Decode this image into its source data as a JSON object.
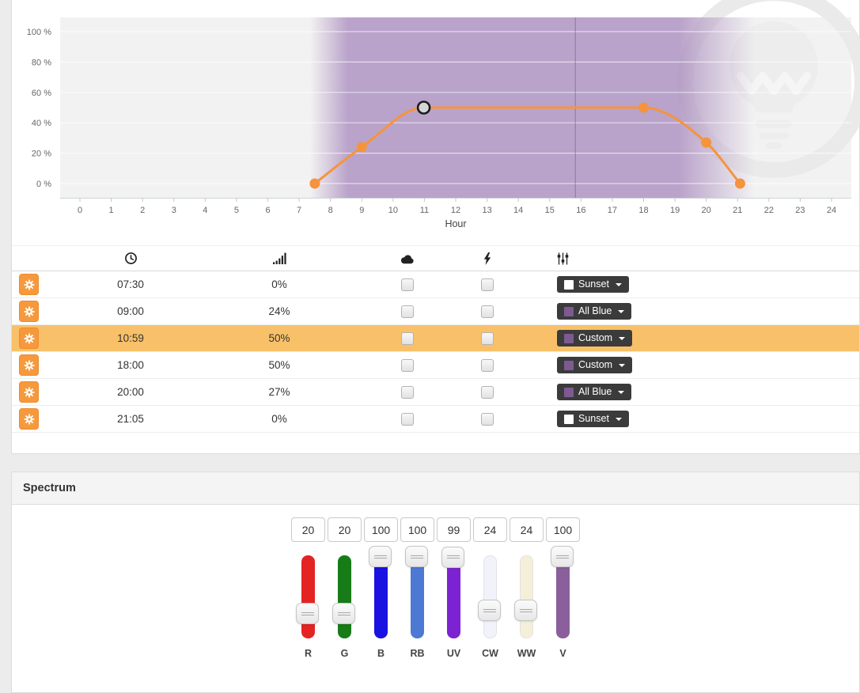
{
  "chart_data": {
    "type": "line",
    "xlabel": "Hour",
    "xlim": [
      0,
      24
    ],
    "ylim": [
      0,
      100
    ],
    "x_ticks": [
      0,
      1,
      2,
      3,
      4,
      5,
      6,
      7,
      8,
      9,
      10,
      11,
      12,
      13,
      14,
      15,
      16,
      17,
      18,
      19,
      20,
      21,
      22,
      23,
      24
    ],
    "y_ticks": [
      100,
      80,
      60,
      40,
      20,
      0
    ],
    "y_tick_suffix": " %",
    "grid": true,
    "series": [
      {
        "name": "intensity",
        "color": "#f5943d",
        "x": [
          7.5,
          9,
          10.98,
          18,
          20,
          21.08
        ],
        "y": [
          0,
          24,
          50,
          50,
          27,
          0
        ]
      }
    ],
    "selected_point_index": 2,
    "selected_point_fill": "#d6d6d6",
    "selected_point_stroke": "#1c1c1c",
    "daylight_band": {
      "color": "#a07eb7",
      "opacity": 0.68,
      "fade_in": [
        7.35,
        8.55
      ],
      "fade_out": [
        19.15,
        21.55
      ]
    },
    "current_time_hour": 15.82,
    "plot_background": "#f2f2f2",
    "watermark": "lightbulb-logo"
  },
  "schedule_table": {
    "row_highlight_color": "#f8c169",
    "accent_color": "#f6993d",
    "columns": [
      {
        "name": "settings",
        "icon": "gear-icon"
      },
      {
        "name": "time",
        "icon": "clock-icon"
      },
      {
        "name": "intensity",
        "icon": "signal-icon"
      },
      {
        "name": "clouds",
        "icon": "cloud-icon"
      },
      {
        "name": "lightning",
        "icon": "bolt-icon"
      },
      {
        "name": "preset",
        "icon": "sliders-icon"
      }
    ],
    "rows": [
      {
        "time": "07:30",
        "intensity": "0%",
        "clouds_checked": false,
        "lightning_checked": false,
        "preset": "Sunset",
        "preset_swatch": "#ffffff",
        "selected": false
      },
      {
        "time": "09:00",
        "intensity": "24%",
        "clouds_checked": false,
        "lightning_checked": false,
        "preset": "All Blue",
        "preset_swatch": "#7d5a91",
        "selected": false
      },
      {
        "time": "10:59",
        "intensity": "50%",
        "clouds_checked": false,
        "lightning_checked": false,
        "preset": "Custom",
        "preset_swatch": "#7d5a91",
        "selected": true
      },
      {
        "time": "18:00",
        "intensity": "50%",
        "clouds_checked": false,
        "lightning_checked": false,
        "preset": "Custom",
        "preset_swatch": "#7d5a91",
        "selected": false
      },
      {
        "time": "20:00",
        "intensity": "27%",
        "clouds_checked": false,
        "lightning_checked": false,
        "preset": "All Blue",
        "preset_swatch": "#7d5a91",
        "selected": false
      },
      {
        "time": "21:05",
        "intensity": "0%",
        "clouds_checked": false,
        "lightning_checked": false,
        "preset": "Sunset",
        "preset_swatch": "#ffffff",
        "selected": false
      }
    ]
  },
  "spectrum": {
    "title": "Spectrum",
    "channels": [
      {
        "label": "R",
        "value": 20,
        "color": "#e32423"
      },
      {
        "label": "G",
        "value": 20,
        "color": "#177c17"
      },
      {
        "label": "B",
        "value": 100,
        "color": "#1a12e0"
      },
      {
        "label": "RB",
        "value": 100,
        "color": "#4d79d5"
      },
      {
        "label": "UV",
        "value": 99,
        "color": "#7d22d3"
      },
      {
        "label": "CW",
        "value": 24,
        "color": "#f2f2fb"
      },
      {
        "label": "WW",
        "value": 24,
        "color": "#f6efd8"
      },
      {
        "label": "V",
        "value": 100,
        "color": "#8a5f9b"
      }
    ]
  }
}
